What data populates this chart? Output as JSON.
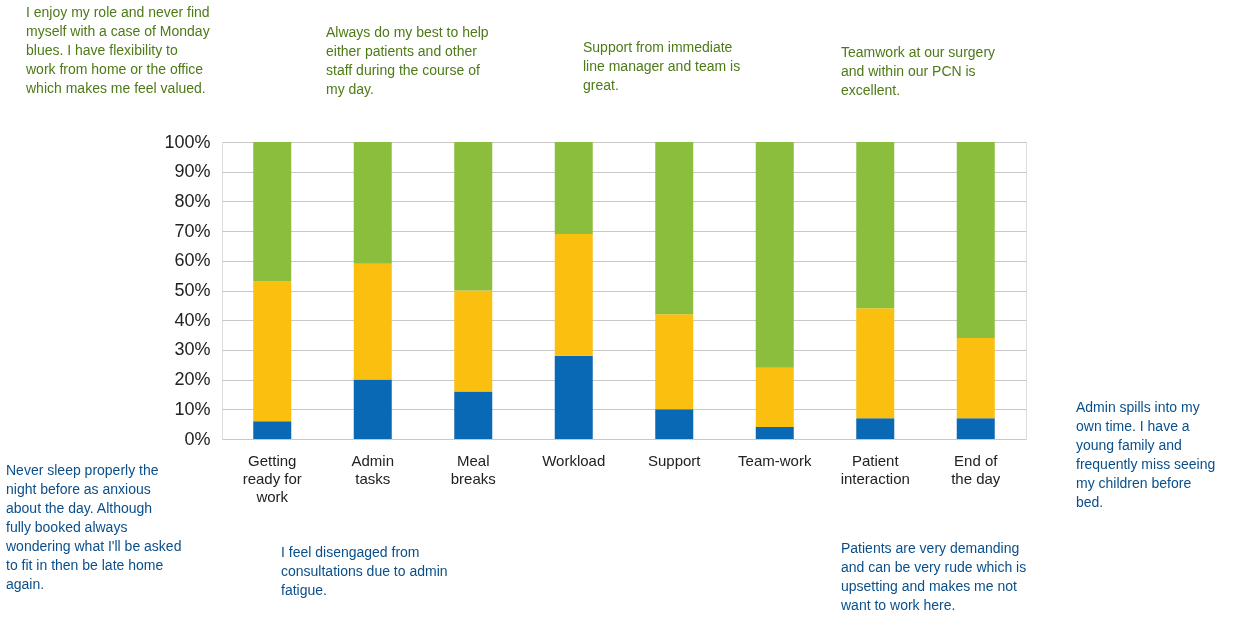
{
  "chart_data": {
    "type": "bar",
    "stacked": true,
    "categories": [
      "Getting ready for work",
      "Admin tasks",
      "Meal breaks",
      "Workload",
      "Support",
      "Team-work",
      "Patient interaction",
      "End of the day"
    ],
    "series": [
      {
        "color": "#0a69b4",
        "values": [
          6,
          20,
          16,
          28,
          10,
          4,
          7,
          7
        ]
      },
      {
        "color": "#fbbf0f",
        "values": [
          47,
          39,
          34,
          41,
          32,
          20,
          37,
          27
        ]
      },
      {
        "color": "#8bbe3c",
        "values": [
          47,
          41,
          50,
          31,
          58,
          76,
          56,
          66
        ]
      }
    ],
    "ylim": [
      0,
      100
    ],
    "yticks": [
      {
        "value": 0,
        "label": "0%"
      },
      {
        "value": 10,
        "label": "10%"
      },
      {
        "value": 20,
        "label": "20%"
      },
      {
        "value": 30,
        "label": "30%"
      },
      {
        "value": 40,
        "label": "40%"
      },
      {
        "value": 50,
        "label": "50%"
      },
      {
        "value": 60,
        "label": "60%"
      },
      {
        "value": 70,
        "label": "70%"
      },
      {
        "value": 80,
        "label": "80%"
      },
      {
        "value": 90,
        "label": "90%"
      },
      {
        "value": 100,
        "label": "100%"
      }
    ],
    "grid": "y",
    "legend": false,
    "annotations": [
      "I enjoy my role and never find myself with a case of Monday blues. I have flexibility to work from home or the office which makes me feel valued.",
      "Always do my best to help either patients and other staff during the course of my day.",
      "Support from immediate line manager and team is great.",
      "Teamwork at our surgery and within our PCN is excellent.",
      "Admin spills into my own time. I have a young family and frequently miss seeing my children before bed.",
      "Never sleep properly the night before as anxious about the day. Although fully booked always wondering what I'll be asked to fit in then be late home again.",
      "I feel disengaged from consultations due to admin fatigue.",
      "Patients are very demanding and can be very rude which is upsetting and makes me not want to work here."
    ]
  }
}
